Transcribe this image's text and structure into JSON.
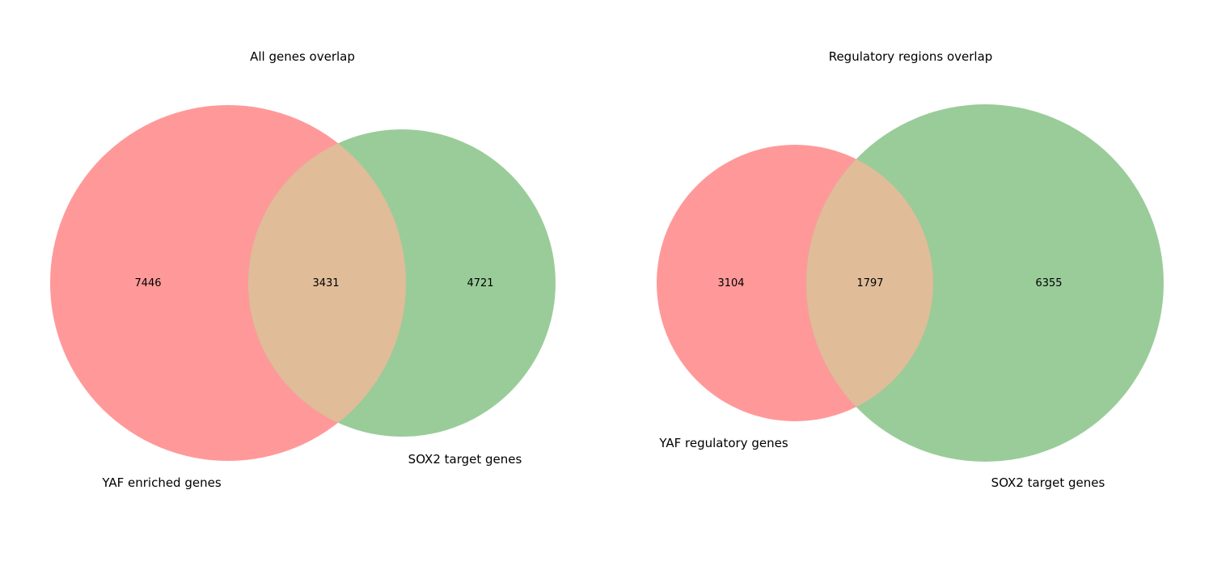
{
  "colors": {
    "set_a": "#ff9999",
    "set_b": "#99cc99",
    "overlap": "#e0bc99"
  },
  "diagrams": [
    {
      "title": "All genes overlap",
      "set_a_label": "YAF enriched genes",
      "set_b_label": "SOX2 target genes",
      "only_a": "7446",
      "overlap": "3431",
      "only_b": "4721"
    },
    {
      "title": "Regulatory regions overlap",
      "set_a_label": "YAF regulatory genes",
      "set_b_label": "SOX2 target genes",
      "only_a": "3104",
      "overlap": "1797",
      "only_b": "6355"
    }
  ]
}
